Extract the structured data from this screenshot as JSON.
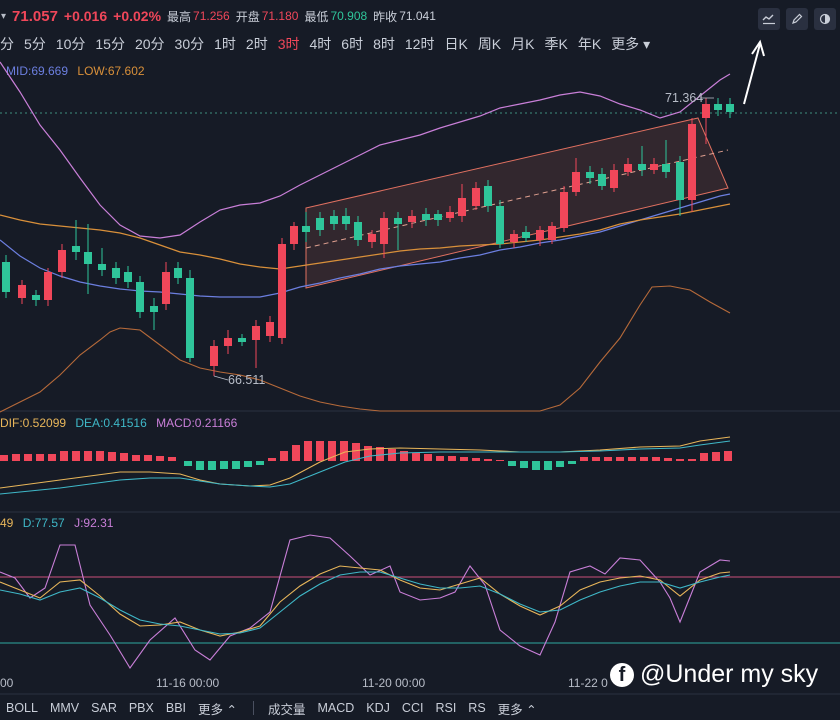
{
  "header": {
    "price": "71.057",
    "change": "+0.016",
    "change_pct": "+0.02%",
    "high_label": "最高",
    "high": "71.256",
    "open_label": "开盘",
    "open": "71.180",
    "low_label": "最低",
    "low": "70.908",
    "prev_close_label": "昨收",
    "prev_close": "71.041"
  },
  "intervals": [
    "分",
    "5分",
    "10分",
    "15分",
    "20分",
    "30分",
    "1时",
    "2时",
    "3时",
    "4时",
    "6时",
    "8时",
    "12时",
    "日K",
    "周K",
    "月K",
    "季K",
    "年K",
    "更多"
  ],
  "active_interval": "3时",
  "indicators": {
    "boll_mid_label": "MID:69.669",
    "boll_low_label": "LOW:67.602",
    "high_annotation": "71.364",
    "low_annotation": "66.511",
    "macd_dif": "DIF:0.52099",
    "macd_dea": "DEA:0.41516",
    "macd_val": "MACD:0.21166",
    "kdj_k": "49",
    "kdj_d": "D:77.57",
    "kdj_j": "J:92.31"
  },
  "time_axis": [
    "00",
    "11-16 00:00",
    "11-20 00:00",
    "11-22 0"
  ],
  "bottom_bar": {
    "overlays": [
      "BOLL",
      "MMV",
      "SAR",
      "PBX",
      "BBI",
      "更多"
    ],
    "subcharts": [
      "成交量",
      "MACD",
      "KDJ",
      "CCI",
      "RSI",
      "RS",
      "更多"
    ]
  },
  "watermark": "@Under my sky",
  "icons": [
    "caret-down-icon",
    "indicator-icon",
    "pencil-icon",
    "toggle-icon",
    "arrow-up-icon"
  ],
  "colors": {
    "up": "#f0475a",
    "down": "#2fc59a",
    "mid": "#6c7fe0",
    "low": "#d9903a",
    "upper": "#c97fd8"
  }
}
